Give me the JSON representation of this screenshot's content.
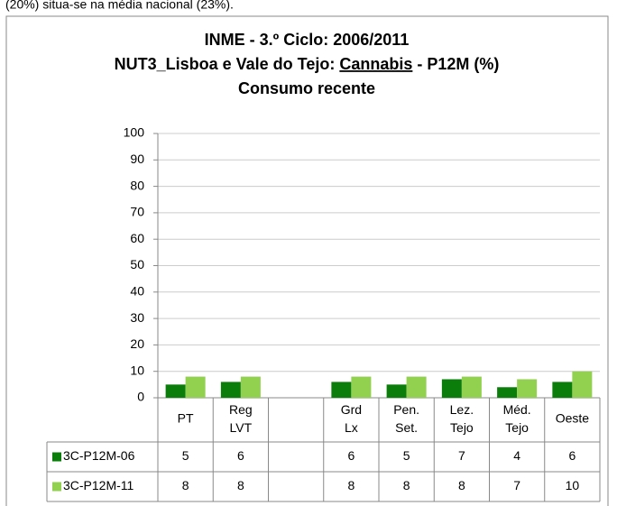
{
  "header_text": "(20%) situa-se na média nacional (23%).",
  "chart_data": {
    "type": "bar",
    "title": [
      "INME - 3.º Ciclo: 2006/2011",
      [
        "NUT3_Lisboa e Vale do Tejo: ",
        "Cannabis",
        " - P12M (%)"
      ],
      "Consumo recente"
    ],
    "title_underlined_part": 1,
    "categories": [
      "PT",
      "Reg LVT",
      null,
      "Grd Lx",
      "Pen. Set.",
      "Lez. Tejo",
      "Méd. Tejo",
      "Oeste"
    ],
    "series": [
      {
        "name": "3C-P12M-06",
        "color": "#0a7d0a",
        "values": [
          5,
          6,
          null,
          6,
          5,
          7,
          4,
          6
        ]
      },
      {
        "name": "3C-P12M-11",
        "color": "#92d050",
        "values": [
          8,
          8,
          null,
          8,
          8,
          8,
          7,
          10
        ]
      }
    ],
    "ylim": [
      0,
      100
    ],
    "yticks": [
      0,
      10,
      20,
      30,
      40,
      50,
      60,
      70,
      80,
      90,
      100
    ],
    "grid": true,
    "data_table": true
  }
}
